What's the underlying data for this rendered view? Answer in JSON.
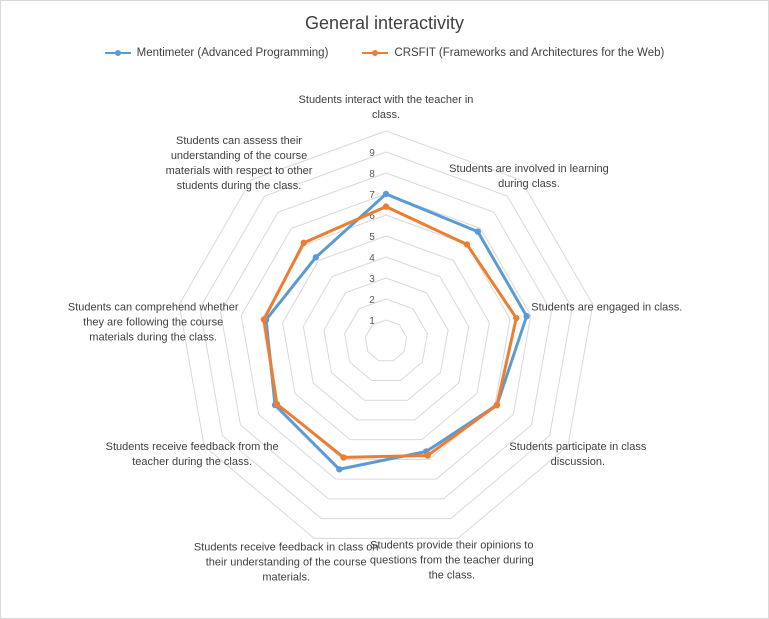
{
  "chart_data": {
    "type": "radar",
    "title": "General interactivity",
    "categories": [
      "Students interact with the teacher in class.",
      "Students are involved in learning during class.",
      "Students are engaged in class.",
      "Students participate in class discussion.",
      "Students provide their opinions to questions from the teacher during the class.",
      "Students receive feedback in class on their understanding of the course materials.",
      "Students receive feedback from the teacher during the class.",
      "Students can comprehend whether they are following the course materials during the class.",
      "Students can assess their understanding of the course materials with respect to other students during the class."
    ],
    "axis_label_lines": [
      [
        "Students interact with the teacher in",
        "class."
      ],
      [
        "Students are involved in learning",
        "during class."
      ],
      [
        "Students are engaged in class."
      ],
      [
        "Students participate in class",
        "discussion."
      ],
      [
        "Students provide their opinions to",
        "questions from the teacher during",
        "the class."
      ],
      [
        "Students receive feedback in class on",
        "their understanding of the course",
        "materials."
      ],
      [
        "Students receive feedback from the",
        "teacher during the class."
      ],
      [
        "Students can comprehend whether",
        "they are following the course",
        "materials during the class."
      ],
      [
        "Students can assess their",
        "understanding of the course",
        "materials with respect to other",
        "students during the class."
      ]
    ],
    "ticks": [
      "1",
      "2",
      "3",
      "4",
      "5",
      "6",
      "7",
      "8",
      "9"
    ],
    "rlim": [
      0,
      10
    ],
    "grid": true,
    "legend_position": "top",
    "series": [
      {
        "name": "Mentimeter (Advanced Programming)",
        "color": "#5b9bd5",
        "values": [
          7.0,
          6.8,
          6.8,
          6.1,
          5.6,
          6.5,
          6.1,
          5.8,
          5.2
        ]
      },
      {
        "name": "CRSFIT (Frameworks and Architectures for the Web)",
        "color": "#ed7d31",
        "values": [
          6.4,
          6.0,
          6.3,
          6.1,
          5.8,
          5.9,
          6.0,
          5.9,
          6.1
        ]
      }
    ]
  }
}
